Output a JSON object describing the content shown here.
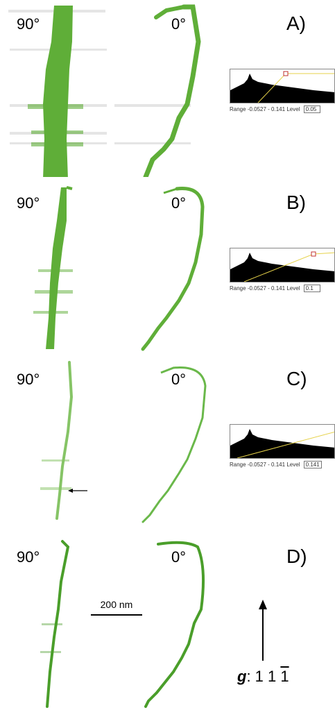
{
  "panels": [
    {
      "label": "A)",
      "angle_left": "90°",
      "angle_right": "0°",
      "histogram": {
        "range_label": "Range",
        "range_value": "-0.0527 - 0.141",
        "level_label": "Level",
        "level_value": "0.05"
      }
    },
    {
      "label": "B)",
      "angle_left": "90°",
      "angle_right": "0°",
      "histogram": {
        "range_label": "Range",
        "range_value": "-0.0527 - 0.141",
        "level_label": "Level",
        "level_value": "0.1"
      }
    },
    {
      "label": "C)",
      "angle_left": "90°",
      "angle_right": "0°",
      "histogram": {
        "range_label": "Range",
        "range_value": "-0.0527 - 0.141",
        "level_label": "Level",
        "level_value": "0.141"
      }
    },
    {
      "label": "D)",
      "angle_left": "90°",
      "angle_right": "0°"
    }
  ],
  "scale_bar": {
    "text": "200 nm"
  },
  "g_vector": {
    "symbol": "g",
    "indices_plain": ": 1 1 ",
    "index_bar": "1"
  },
  "colors": {
    "dislocation": "#4a9e2a",
    "dislocation_dark": "#2f7d1f"
  }
}
